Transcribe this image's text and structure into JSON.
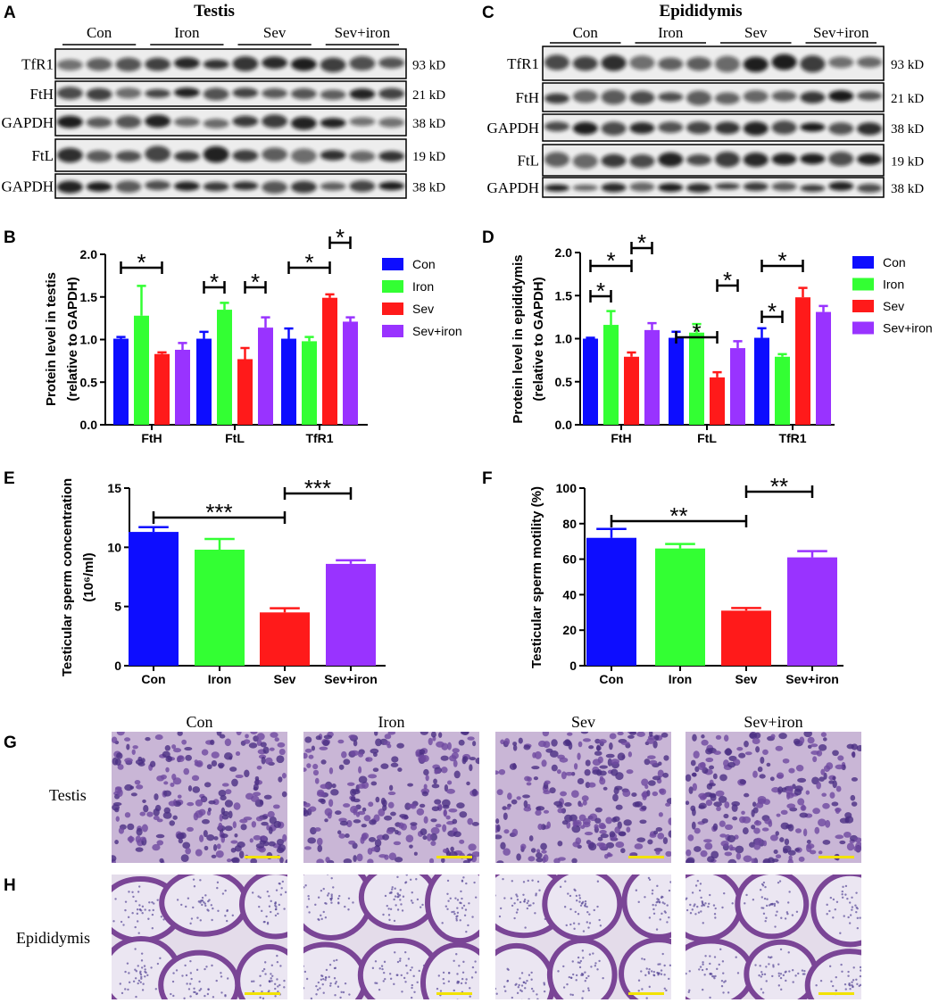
{
  "panel_labels": [
    "A",
    "B",
    "C",
    "D",
    "E",
    "F",
    "G",
    "H"
  ],
  "blots": [
    {
      "title": "Testis",
      "groups": [
        "Con",
        "Iron",
        "Sev",
        "Sev+iron"
      ],
      "rows": [
        {
          "protein": "TfR1",
          "size": "93 kD"
        },
        {
          "protein": "FtH",
          "size": "21 kD"
        },
        {
          "protein": "GAPDH",
          "size": "38 kD"
        },
        {
          "protein": "FtL",
          "size": "19 kD"
        },
        {
          "protein": "GAPDH",
          "size": "38 kD"
        }
      ]
    },
    {
      "title": "Epididymis",
      "groups": [
        "Con",
        "Iron",
        "Sev",
        "Sev+iron"
      ],
      "rows": [
        {
          "protein": "TfR1",
          "size": "93 kD"
        },
        {
          "protein": "FtH",
          "size": "21 kD"
        },
        {
          "protein": "GAPDH",
          "size": "38 kD"
        },
        {
          "protein": "FtL",
          "size": "19 kD"
        },
        {
          "protein": "GAPDH",
          "size": "38 kD"
        }
      ]
    }
  ],
  "chart_data": [
    {
      "type": "bar",
      "ylabel": [
        "Protein level in testis",
        "(relative to GAPDH)"
      ],
      "categories": [
        "FtH",
        "FtL",
        "TfR1"
      ],
      "series": [
        {
          "name": "Con",
          "color": "#0d0dff",
          "values": [
            1.01,
            1.01,
            1.01
          ],
          "errors": [
            0.02,
            0.08,
            0.12
          ]
        },
        {
          "name": "Iron",
          "color": "#33ff33",
          "values": [
            1.28,
            1.35,
            0.98
          ],
          "errors": [
            0.35,
            0.08,
            0.05
          ]
        },
        {
          "name": "Sev",
          "color": "#ff1a1a",
          "values": [
            0.83,
            0.77,
            1.49
          ],
          "errors": [
            0.02,
            0.13,
            0.04
          ]
        },
        {
          "name": "Sev+iron",
          "color": "#9933ff",
          "values": [
            0.88,
            1.14,
            1.21
          ],
          "errors": [
            0.08,
            0.12,
            0.05
          ]
        }
      ],
      "ylim": [
        0,
        2.0
      ],
      "yticks": [
        {
          "value": 0,
          "label": "0.0"
        },
        {
          "value": 0.5,
          "label": "0.5"
        },
        {
          "value": 1.0,
          "label": "1.0"
        },
        {
          "value": 1.5,
          "label": "1.5"
        },
        {
          "value": 2.0,
          "label": "2.0"
        }
      ],
      "annotations": [
        {
          "text": "*"
        },
        {
          "text": "*"
        },
        {
          "text": "*"
        },
        {
          "text": "*"
        },
        {
          "text": "*"
        }
      ]
    },
    {
      "type": "bar",
      "ylabel": [
        "Protein level in epididymis",
        "(relative to GAPDH)"
      ],
      "categories": [
        "FtH",
        "FtL",
        "TfR1"
      ],
      "series": [
        {
          "name": "Con",
          "color": "#0d0dff",
          "values": [
            1.0,
            1.01,
            1.01
          ],
          "errors": [
            0.01,
            0.07,
            0.11
          ]
        },
        {
          "name": "Iron",
          "color": "#33ff33",
          "values": [
            1.16,
            1.07,
            0.79
          ],
          "errors": [
            0.16,
            0.1,
            0.03
          ]
        },
        {
          "name": "Sev",
          "color": "#ff1a1a",
          "values": [
            0.79,
            0.55,
            1.48
          ],
          "errors": [
            0.05,
            0.06,
            0.11
          ]
        },
        {
          "name": "Sev+iron",
          "color": "#9933ff",
          "values": [
            1.1,
            0.89,
            1.31
          ],
          "errors": [
            0.08,
            0.08,
            0.07
          ]
        }
      ],
      "ylim": [
        0,
        2.0
      ],
      "yticks": [
        {
          "value": 0,
          "label": "0.0"
        },
        {
          "value": 0.5,
          "label": "0.5"
        },
        {
          "value": 1.0,
          "label": "1.0"
        },
        {
          "value": 1.5,
          "label": "1.5"
        },
        {
          "value": 2.0,
          "label": "2.0"
        }
      ],
      "annotations": [
        {
          "text": "*"
        },
        {
          "text": "*"
        },
        {
          "text": "*"
        },
        {
          "text": "*"
        },
        {
          "text": "*"
        },
        {
          "text": "*"
        },
        {
          "text": "*"
        }
      ]
    },
    {
      "type": "bar",
      "ylabel": [
        "Testicular sperm concentration",
        "(10⁶/ml)"
      ],
      "categories": [
        "Con",
        "Iron",
        "Sev",
        "Sev+iron"
      ],
      "colors": [
        "#0d0dff",
        "#33ff33",
        "#ff1a1a",
        "#9933ff"
      ],
      "values": [
        11.3,
        9.8,
        4.5,
        8.6
      ],
      "errors": [
        0.4,
        0.9,
        0.35,
        0.3
      ],
      "ylim": [
        0,
        15
      ],
      "yticks": [
        0,
        5,
        10,
        15
      ],
      "annotations": [
        {
          "text": "***"
        },
        {
          "text": "***"
        }
      ]
    },
    {
      "type": "bar",
      "ylabel": [
        "Testicular sperm motility (%)"
      ],
      "categories": [
        "Con",
        "Iron",
        "Sev",
        "Sev+iron"
      ],
      "colors": [
        "#0d0dff",
        "#33ff33",
        "#ff1a1a",
        "#9933ff"
      ],
      "values": [
        72,
        66,
        31,
        61
      ],
      "errors": [
        5,
        2.5,
        1.5,
        3.5
      ],
      "ylim": [
        0,
        100
      ],
      "yticks": [
        0,
        20,
        40,
        60,
        80,
        100
      ],
      "annotations": [
        {
          "text": "**"
        },
        {
          "text": "**"
        }
      ]
    }
  ],
  "histology": {
    "columns": [
      "Con",
      "Iron",
      "Sev",
      "Sev+iron"
    ],
    "rows": [
      "Testis",
      "Epididymis"
    ]
  }
}
